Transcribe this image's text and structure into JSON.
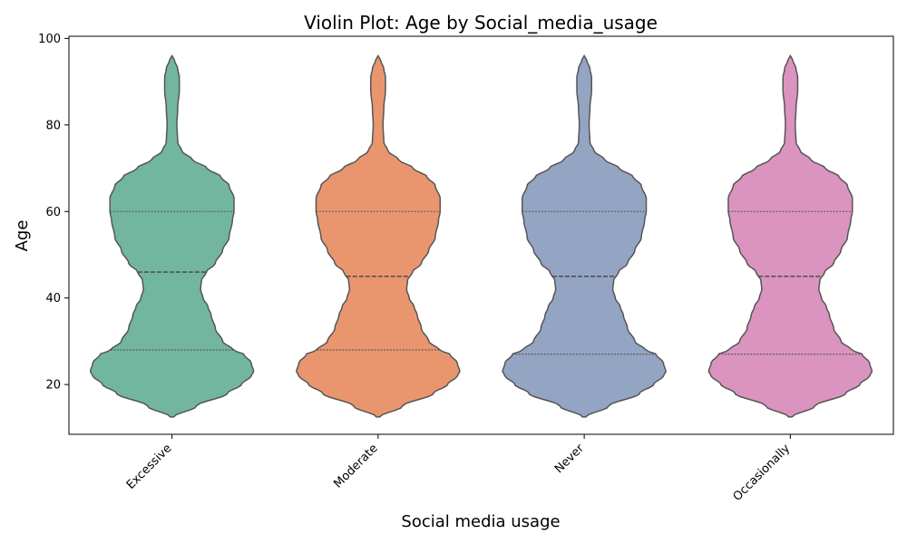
{
  "chart_data": {
    "type": "violin",
    "title": "Violin Plot: Age by Social_media_usage",
    "xlabel": "Social media usage",
    "ylabel": "Age",
    "ylim": [
      8.5,
      100.5
    ],
    "yticks": [
      20,
      40,
      60,
      80,
      100
    ],
    "grid": false,
    "categories": [
      "Excessive",
      "Moderate",
      "Never",
      "Occasionally"
    ],
    "colors": [
      "#72b6a0",
      "#e9966f",
      "#94a4c3",
      "#db93bf"
    ],
    "outline_color": "#555555",
    "series": [
      {
        "category": "Excessive",
        "min": 12.5,
        "max": 96,
        "quartiles": [
          28,
          46,
          60
        ],
        "profile": [
          [
            12.5,
            0.02
          ],
          [
            15,
            0.3
          ],
          [
            18,
            0.68
          ],
          [
            20,
            0.85
          ],
          [
            22,
            0.97
          ],
          [
            23,
            1.0
          ],
          [
            25,
            0.97
          ],
          [
            27,
            0.88
          ],
          [
            28,
            0.75
          ],
          [
            30,
            0.62
          ],
          [
            33,
            0.53
          ],
          [
            36,
            0.48
          ],
          [
            38,
            0.44
          ],
          [
            40,
            0.38
          ],
          [
            42,
            0.35
          ],
          [
            44,
            0.36
          ],
          [
            46,
            0.42
          ],
          [
            48,
            0.53
          ],
          [
            51,
            0.62
          ],
          [
            54,
            0.7
          ],
          [
            58,
            0.74
          ],
          [
            60,
            0.76
          ],
          [
            63,
            0.76
          ],
          [
            66,
            0.7
          ],
          [
            68,
            0.6
          ],
          [
            70,
            0.43
          ],
          [
            72,
            0.25
          ],
          [
            74,
            0.12
          ],
          [
            76,
            0.07
          ],
          [
            80,
            0.06
          ],
          [
            84,
            0.07
          ],
          [
            88,
            0.09
          ],
          [
            91,
            0.09
          ],
          [
            93,
            0.07
          ],
          [
            95,
            0.03
          ],
          [
            96,
            0.0
          ]
        ]
      },
      {
        "category": "Moderate",
        "min": 12.5,
        "max": 96,
        "quartiles": [
          28,
          45,
          60
        ],
        "profile": [
          [
            12.5,
            0.02
          ],
          [
            15,
            0.3
          ],
          [
            18,
            0.68
          ],
          [
            20,
            0.85
          ],
          [
            22,
            0.97
          ],
          [
            23,
            1.0
          ],
          [
            25,
            0.97
          ],
          [
            27,
            0.88
          ],
          [
            28,
            0.75
          ],
          [
            30,
            0.62
          ],
          [
            33,
            0.53
          ],
          [
            36,
            0.48
          ],
          [
            38,
            0.44
          ],
          [
            40,
            0.38
          ],
          [
            42,
            0.35
          ],
          [
            44,
            0.36
          ],
          [
            46,
            0.42
          ],
          [
            48,
            0.53
          ],
          [
            51,
            0.62
          ],
          [
            54,
            0.7
          ],
          [
            58,
            0.74
          ],
          [
            60,
            0.76
          ],
          [
            63,
            0.76
          ],
          [
            66,
            0.7
          ],
          [
            68,
            0.6
          ],
          [
            70,
            0.43
          ],
          [
            72,
            0.25
          ],
          [
            74,
            0.12
          ],
          [
            76,
            0.07
          ],
          [
            80,
            0.06
          ],
          [
            84,
            0.07
          ],
          [
            88,
            0.09
          ],
          [
            91,
            0.09
          ],
          [
            93,
            0.07
          ],
          [
            95,
            0.03
          ],
          [
            96,
            0.0
          ]
        ]
      },
      {
        "category": "Never",
        "min": 12.5,
        "max": 96,
        "quartiles": [
          27,
          45,
          60
        ],
        "profile": [
          [
            12.5,
            0.02
          ],
          [
            15,
            0.3
          ],
          [
            18,
            0.68
          ],
          [
            20,
            0.85
          ],
          [
            22,
            0.97
          ],
          [
            23,
            1.0
          ],
          [
            25,
            0.97
          ],
          [
            27,
            0.88
          ],
          [
            28,
            0.75
          ],
          [
            30,
            0.62
          ],
          [
            33,
            0.53
          ],
          [
            36,
            0.48
          ],
          [
            38,
            0.44
          ],
          [
            40,
            0.38
          ],
          [
            42,
            0.35
          ],
          [
            44,
            0.36
          ],
          [
            46,
            0.42
          ],
          [
            48,
            0.53
          ],
          [
            51,
            0.62
          ],
          [
            54,
            0.7
          ],
          [
            58,
            0.74
          ],
          [
            60,
            0.76
          ],
          [
            63,
            0.76
          ],
          [
            66,
            0.7
          ],
          [
            68,
            0.6
          ],
          [
            70,
            0.43
          ],
          [
            72,
            0.25
          ],
          [
            74,
            0.12
          ],
          [
            76,
            0.07
          ],
          [
            80,
            0.06
          ],
          [
            84,
            0.07
          ],
          [
            88,
            0.09
          ],
          [
            91,
            0.09
          ],
          [
            93,
            0.07
          ],
          [
            95,
            0.03
          ],
          [
            96,
            0.0
          ]
        ]
      },
      {
        "category": "Occasionally",
        "min": 12.5,
        "max": 96,
        "quartiles": [
          27,
          45,
          60
        ],
        "profile": [
          [
            12.5,
            0.02
          ],
          [
            15,
            0.3
          ],
          [
            18,
            0.68
          ],
          [
            20,
            0.85
          ],
          [
            22,
            0.97
          ],
          [
            23,
            1.0
          ],
          [
            25,
            0.97
          ],
          [
            27,
            0.88
          ],
          [
            28,
            0.75
          ],
          [
            30,
            0.62
          ],
          [
            33,
            0.53
          ],
          [
            36,
            0.48
          ],
          [
            38,
            0.44
          ],
          [
            40,
            0.38
          ],
          [
            42,
            0.35
          ],
          [
            44,
            0.36
          ],
          [
            46,
            0.42
          ],
          [
            48,
            0.53
          ],
          [
            51,
            0.62
          ],
          [
            54,
            0.7
          ],
          [
            58,
            0.74
          ],
          [
            60,
            0.76
          ],
          [
            63,
            0.76
          ],
          [
            66,
            0.7
          ],
          [
            68,
            0.6
          ],
          [
            70,
            0.43
          ],
          [
            72,
            0.25
          ],
          [
            74,
            0.12
          ],
          [
            76,
            0.07
          ],
          [
            80,
            0.06
          ],
          [
            84,
            0.07
          ],
          [
            88,
            0.09
          ],
          [
            91,
            0.09
          ],
          [
            93,
            0.07
          ],
          [
            95,
            0.03
          ],
          [
            96,
            0.0
          ]
        ]
      }
    ]
  }
}
